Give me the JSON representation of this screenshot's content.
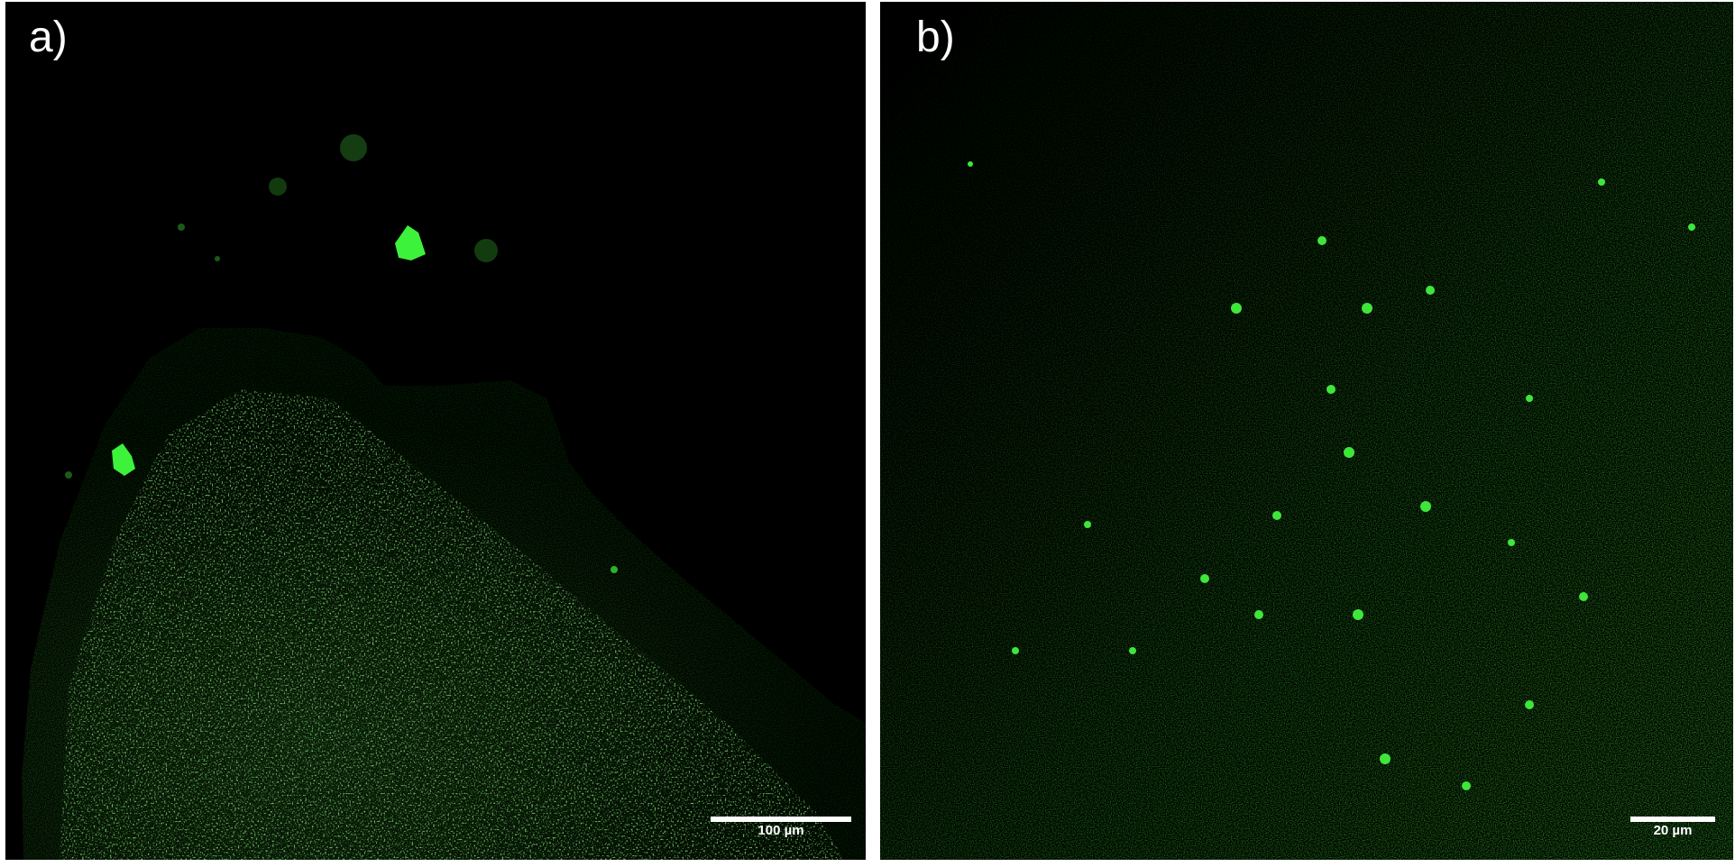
{
  "figure": {
    "panels": [
      {
        "label": "a)",
        "scalebar": {
          "text": "100 µm"
        },
        "colors": {
          "background": "#000000",
          "film_edge": "#0f3b0d",
          "film_mid": "#164d13",
          "film_core": "#2e8a24",
          "bright_particle": "#3df23a"
        }
      },
      {
        "label": "b)",
        "scalebar": {
          "text": "20 µm"
        },
        "colors": {
          "background": "#000000",
          "fluorescence_dim": "#0e3a0c",
          "fluorescence_bright": "#35c22b",
          "bright_cluster": "#3ee63a"
        }
      }
    ]
  }
}
